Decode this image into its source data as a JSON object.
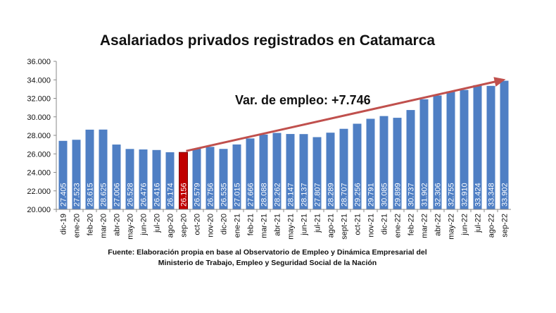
{
  "chart_data": {
    "type": "bar",
    "title": "Asalariados privados registrados en Catamarca",
    "xlabel": "",
    "ylabel": "",
    "ylim": [
      20000,
      36000
    ],
    "yticks": [
      "20.000",
      "22.000",
      "24.000",
      "26.000",
      "28.000",
      "30.000",
      "32.000",
      "34.000",
      "36.000"
    ],
    "ytick_values": [
      20000,
      22000,
      24000,
      26000,
      28000,
      30000,
      32000,
      34000,
      36000
    ],
    "categories": [
      "dic-19",
      "ene-20",
      "feb-20",
      "mar-20",
      "abr-20",
      "may-20",
      "jun-20",
      "jul-20",
      "ago-20",
      "sep-20",
      "oct-20",
      "nov-20",
      "dic-20",
      "ene-21",
      "feb-21",
      "mar-21",
      "abr-21",
      "may-21",
      "jun-21",
      "jul-21",
      "ago-21",
      "sept-21",
      "oct-21",
      "nov-21",
      "dic-21",
      "ene-22",
      "feb-22",
      "mar-22",
      "abr-22",
      "may-22",
      "jun-22",
      "jul-22",
      "ago-22",
      "sep-22"
    ],
    "values": [
      27405,
      27523,
      28615,
      28625,
      27006,
      26528,
      26476,
      26416,
      26174,
      26156,
      26579,
      26756,
      26535,
      27015,
      27666,
      28088,
      28262,
      28147,
      28137,
      27807,
      28289,
      28707,
      29256,
      29791,
      30085,
      29899,
      30737,
      31902,
      32306,
      32755,
      32910,
      33424,
      33348,
      33902
    ],
    "labels": [
      "27.405",
      "27.523",
      "28.615",
      "28.625",
      "27.006",
      "26.528",
      "26.476",
      "26.416",
      "26.174",
      "26.156",
      "26.579",
      "26.756",
      "26.535",
      "27.015",
      "27.666",
      "28.088",
      "28.262",
      "28.147",
      "28.137",
      "27.807",
      "28.289",
      "28.707",
      "29.256",
      "29.791",
      "30.085",
      "29.899",
      "30.737",
      "31.902",
      "32.306",
      "32.755",
      "32.910",
      "33.424",
      "33.348",
      "33.902"
    ],
    "highlight_index": 9,
    "colors": {
      "bar": "#4f7fc4",
      "highlight": "#c00000",
      "arrow": "#c0504d",
      "label": "#ffffff"
    },
    "annotation": "Var. de empleo: +7.746",
    "grid": false
  },
  "source": {
    "line1": "Fuente: Elaboración propia en base al Observatorio de Empleo y Dinámica Empresarial del",
    "line2": "Ministerio de Trabajo, Empleo y Seguridad Social de la Nación"
  }
}
